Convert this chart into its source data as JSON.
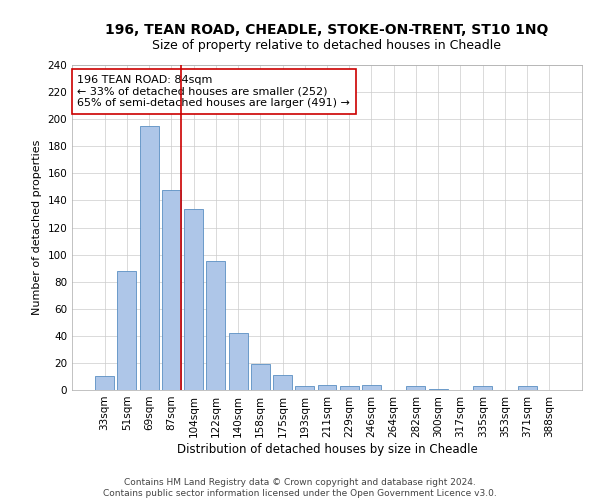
{
  "title": "196, TEAN ROAD, CHEADLE, STOKE-ON-TRENT, ST10 1NQ",
  "subtitle": "Size of property relative to detached houses in Cheadle",
  "xlabel": "Distribution of detached houses by size in Cheadle",
  "ylabel": "Number of detached properties",
  "categories": [
    "33sqm",
    "51sqm",
    "69sqm",
    "87sqm",
    "104sqm",
    "122sqm",
    "140sqm",
    "158sqm",
    "175sqm",
    "193sqm",
    "211sqm",
    "229sqm",
    "246sqm",
    "264sqm",
    "282sqm",
    "300sqm",
    "317sqm",
    "335sqm",
    "353sqm",
    "371sqm",
    "388sqm"
  ],
  "values": [
    10,
    88,
    195,
    148,
    134,
    95,
    42,
    19,
    11,
    3,
    4,
    3,
    4,
    0,
    3,
    1,
    0,
    3,
    0,
    3,
    0
  ],
  "bar_color": "#aec6e8",
  "bar_edge_color": "#5a8fc2",
  "vline_index": 3,
  "vline_color": "#cc0000",
  "annotation_text": "196 TEAN ROAD: 84sqm\n← 33% of detached houses are smaller (252)\n65% of semi-detached houses are larger (491) →",
  "annotation_box_color": "#ffffff",
  "annotation_box_edge_color": "#cc0000",
  "ylim": [
    0,
    240
  ],
  "yticks": [
    0,
    20,
    40,
    60,
    80,
    100,
    120,
    140,
    160,
    180,
    200,
    220,
    240
  ],
  "footer_line1": "Contains HM Land Registry data © Crown copyright and database right 2024.",
  "footer_line2": "Contains public sector information licensed under the Open Government Licence v3.0.",
  "bg_color": "#ffffff",
  "grid_color": "#cccccc",
  "title_fontsize": 10,
  "subtitle_fontsize": 9,
  "xlabel_fontsize": 8.5,
  "ylabel_fontsize": 8,
  "tick_fontsize": 7.5,
  "annotation_fontsize": 8,
  "footer_fontsize": 6.5
}
